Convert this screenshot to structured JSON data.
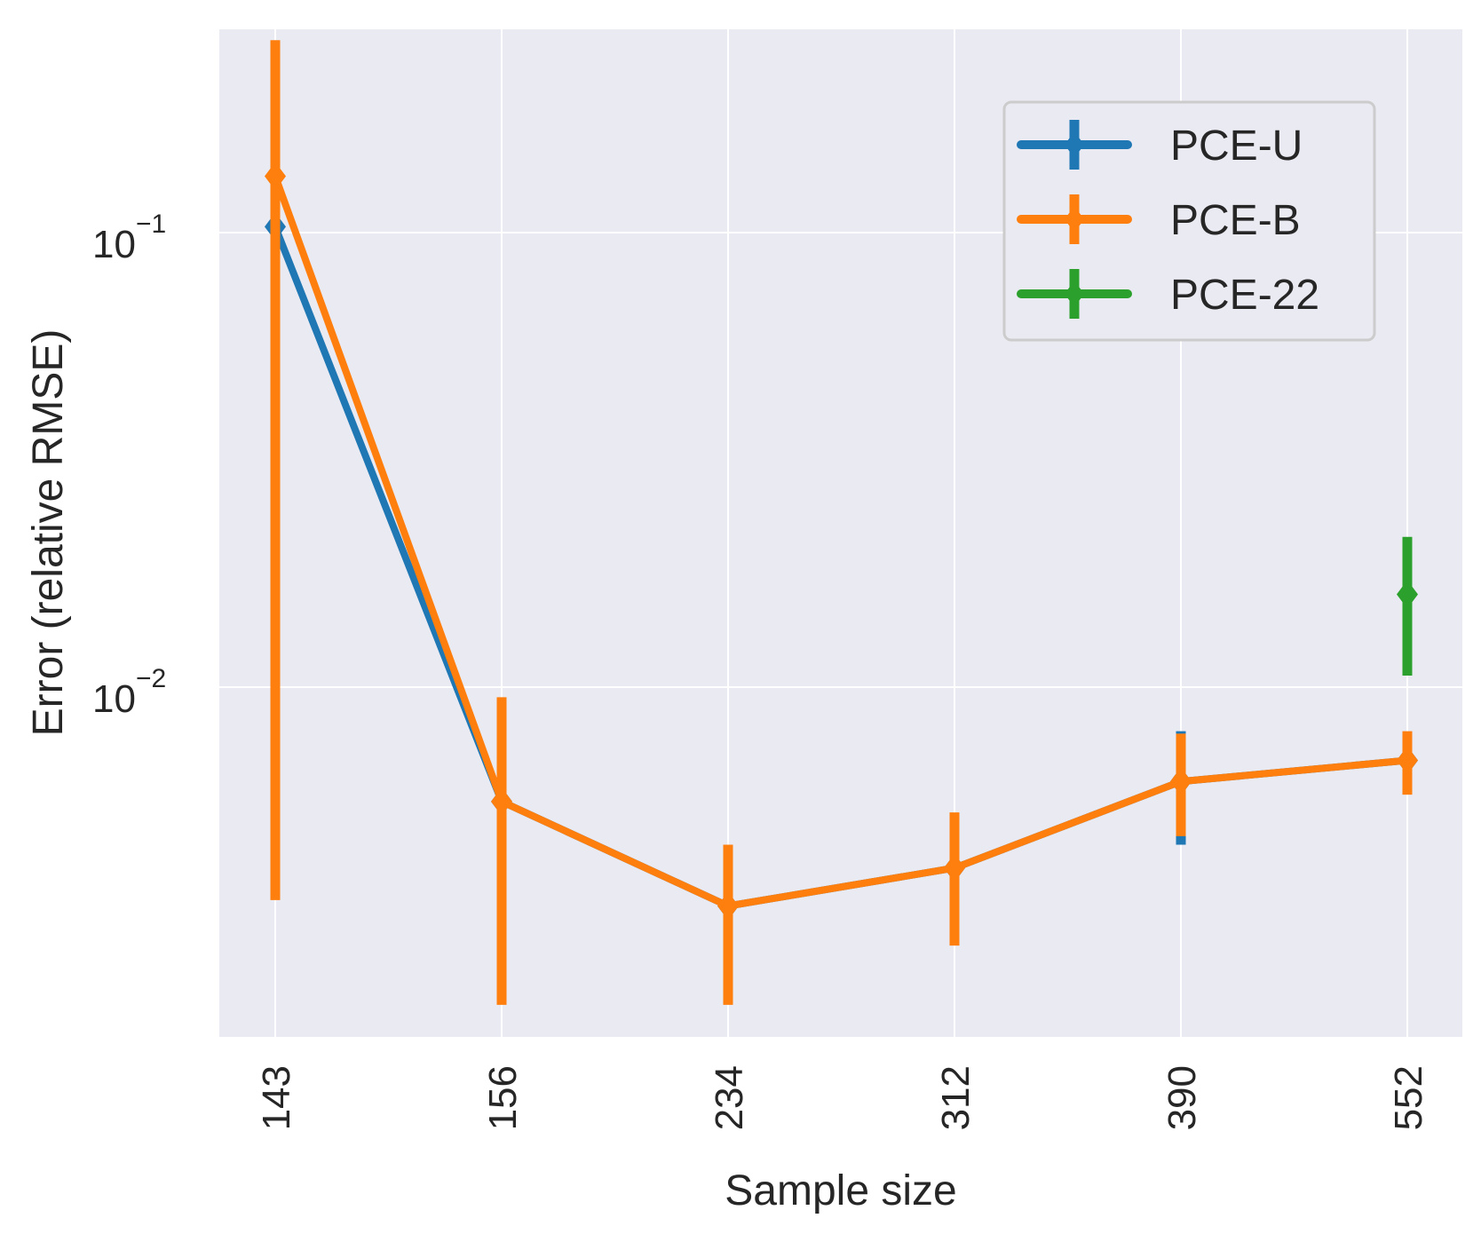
{
  "chart_data": {
    "type": "line",
    "xlabel": "Sample size",
    "ylabel": "Error (relative RMSE)",
    "yscale": "log",
    "ylim": [
      0.0017,
      0.28
    ],
    "grid": true,
    "legend_position": "top-right",
    "categories": [
      "143",
      "156",
      "234",
      "312",
      "390",
      "552"
    ],
    "y_ticks": [
      {
        "value": 0.1,
        "base": "10",
        "exponent": "−1"
      },
      {
        "value": 0.01,
        "base": "10",
        "exponent": "−2"
      }
    ],
    "series": [
      {
        "name": "PCE-U",
        "color": "#1f77b4",
        "points": [
          {
            "x": "143",
            "y": 0.103,
            "lo": 0.098,
            "hi": 0.2
          },
          {
            "x": "156",
            "y": 0.0056,
            "lo": 0.0056,
            "hi": 0.0056
          },
          {
            "x": "234",
            "y": 0.0033,
            "lo": 0.0033,
            "hi": 0.0033
          },
          {
            "x": "312",
            "y": 0.004,
            "lo": 0.004,
            "hi": 0.004
          },
          {
            "x": "390",
            "y": 0.0062,
            "lo": 0.0045,
            "hi": 0.008
          },
          {
            "x": "552",
            "y": 0.0069,
            "lo": 0.0069,
            "hi": 0.0069
          }
        ]
      },
      {
        "name": "PCE-B",
        "color": "#ff7f0e",
        "points": [
          {
            "x": "143",
            "y": 0.133,
            "lo": 0.0034,
            "hi": 0.265
          },
          {
            "x": "156",
            "y": 0.0056,
            "lo": 0.002,
            "hi": 0.0095
          },
          {
            "x": "234",
            "y": 0.0033,
            "lo": 0.002,
            "hi": 0.0045
          },
          {
            "x": "312",
            "y": 0.004,
            "lo": 0.0027,
            "hi": 0.0053
          },
          {
            "x": "390",
            "y": 0.0062,
            "lo": 0.0047,
            "hi": 0.0079
          },
          {
            "x": "552",
            "y": 0.0069,
            "lo": 0.0058,
            "hi": 0.008
          }
        ]
      },
      {
        "name": "PCE-22",
        "color": "#2ca02c",
        "points": [
          {
            "x": "552",
            "y": 0.016,
            "lo": 0.0106,
            "hi": 0.0214
          }
        ]
      }
    ]
  }
}
